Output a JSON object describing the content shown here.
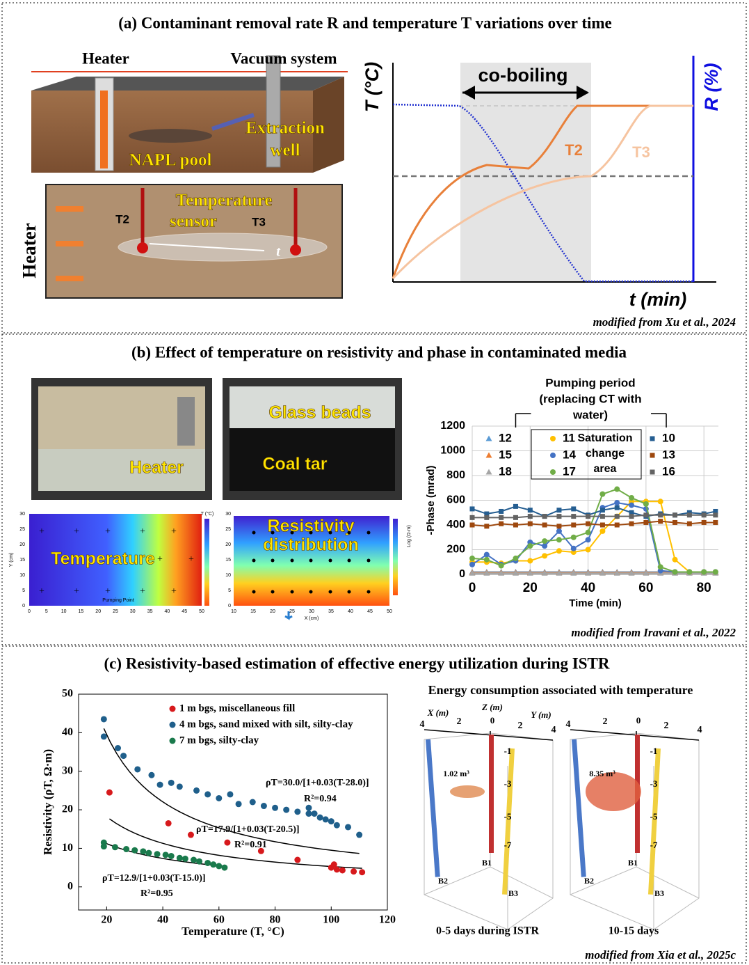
{
  "panels": [
    {
      "title": "(a) Contaminant removal rate R and temperature T variations over time",
      "credit": "modified from Xu et al., 2024",
      "schematic": {
        "heater": "Heater",
        "vacuum": "Vacuum system",
        "well": [
          "Extraction",
          "well"
        ],
        "pool": "NAPL pool",
        "sensor": [
          "Temperature",
          "sensor"
        ],
        "t2": "T2",
        "t3": "T3",
        "side_label": "Heater",
        "arrow_label": "t"
      },
      "concept_chart": {
        "y_label": "T (°C)",
        "y2_label": "R (%)",
        "band_label": "co-boiling",
        "t2": "T2",
        "t3": "T3",
        "x_label": "t (min)"
      }
    },
    {
      "title": "(b) Effect of temperature on resistivity and phase in contaminated media",
      "credit": "modified from Iravani et al., 2022",
      "photos": {
        "heater": "Heater",
        "beads": "Glass beads",
        "tar": "Coal tar"
      },
      "maps": {
        "temperature_label": "Temperature",
        "resistivity_label": [
          "Resistivity",
          "distribution"
        ],
        "y_ticks": [
          0,
          5,
          10,
          15,
          20,
          25,
          30
        ],
        "temp_x_ticks": [
          0,
          5,
          10,
          15,
          20,
          25,
          30,
          35,
          40,
          45,
          50
        ],
        "res_x_ticks": [
          10,
          15,
          20,
          25,
          30,
          35,
          40,
          45,
          50
        ],
        "y_axis": "Y (cm)",
        "x_axis": "X (cm)",
        "pumping_point": "Pumping Point",
        "temp_unit": "T (°C)",
        "res_unit": "Log (Ω·m)"
      }
    },
    {
      "title": "(c) Resistivity-based estimation of effective energy utilization during ISTR",
      "credit": "modified from Xia et al., 2025c",
      "model": {
        "title": "Energy consumption associated with temperature",
        "axis_labels": [
          "X (m)",
          "Z (m)",
          "Y (m)"
        ],
        "x_ticks": [
          4,
          2
        ],
        "z_ticks": [
          0,
          -1,
          -3,
          -5,
          -7
        ],
        "y_ticks": [
          2,
          4
        ],
        "wells": [
          "B1",
          "B2",
          "B3"
        ],
        "views": [
          {
            "volume": "1.02 m³",
            "caption": "0-5 days during ISTR"
          },
          {
            "volume": "8.35 m³",
            "caption": "10-15 days"
          }
        ]
      }
    }
  ],
  "chart_data": [
    {
      "type": "line",
      "y_label": "-Phase (mrad)",
      "x_label": "Time (min)",
      "annotation": [
        "Pumping period",
        "(replacing CT with",
        "water)"
      ],
      "legend_note": [
        "Saturation",
        "change",
        "area"
      ],
      "xlim": [
        0,
        85
      ],
      "xticks": [
        0,
        20,
        40,
        60,
        80
      ],
      "ylim": [
        0,
        1200
      ],
      "yticks": [
        0,
        200,
        400,
        600,
        800,
        1000,
        1200
      ],
      "grid": true,
      "x": [
        0,
        5,
        10,
        15,
        20,
        25,
        30,
        35,
        40,
        45,
        50,
        55,
        60,
        65,
        70,
        75,
        80,
        84
      ],
      "series": [
        {
          "name": "12",
          "color": "#5b9bd5",
          "marker": "triangle",
          "values": [
            20,
            20,
            20,
            20,
            20,
            20,
            20,
            20,
            20,
            20,
            20,
            20,
            20,
            20,
            20,
            20,
            20,
            20
          ]
        },
        {
          "name": "15",
          "color": "#ed7d31",
          "marker": "triangle",
          "values": [
            15,
            15,
            15,
            15,
            15,
            15,
            15,
            15,
            15,
            15,
            15,
            15,
            15,
            15,
            15,
            15,
            15,
            15
          ]
        },
        {
          "name": "18",
          "color": "#a5a5a5",
          "marker": "triangle",
          "values": [
            10,
            10,
            10,
            10,
            10,
            10,
            10,
            10,
            10,
            10,
            10,
            10,
            10,
            10,
            10,
            10,
            10,
            10
          ]
        },
        {
          "name": "11",
          "color": "#ffc000",
          "marker": "circle",
          "values": [
            100,
            100,
            90,
            110,
            110,
            150,
            190,
            180,
            200,
            350,
            470,
            590,
            590,
            590,
            120,
            20,
            20,
            20
          ]
        },
        {
          "name": "14",
          "color": "#4472c4",
          "marker": "circle",
          "values": [
            80,
            160,
            80,
            110,
            260,
            230,
            350,
            210,
            280,
            540,
            580,
            560,
            530,
            30,
            20,
            20,
            20,
            20
          ]
        },
        {
          "name": "17",
          "color": "#70ad47",
          "marker": "circle",
          "values": [
            130,
            120,
            70,
            130,
            230,
            270,
            280,
            300,
            340,
            650,
            690,
            620,
            570,
            60,
            20,
            20,
            20,
            20
          ]
        },
        {
          "name": "10",
          "color": "#255e91",
          "marker": "square",
          "values": [
            530,
            490,
            510,
            550,
            520,
            470,
            520,
            530,
            480,
            520,
            540,
            500,
            470,
            490,
            480,
            500,
            490,
            510
          ]
        },
        {
          "name": "13",
          "color": "#9e480e",
          "marker": "square",
          "values": [
            400,
            390,
            410,
            400,
            410,
            400,
            390,
            400,
            410,
            400,
            400,
            410,
            420,
            430,
            420,
            410,
            420,
            420
          ]
        },
        {
          "name": "16",
          "color": "#636363",
          "marker": "square",
          "values": [
            460,
            460,
            460,
            460,
            470,
            470,
            470,
            470,
            470,
            470,
            470,
            470,
            480,
            480,
            480,
            480,
            480,
            480
          ]
        }
      ]
    },
    {
      "type": "scatter",
      "y_label": "Resistivity (ρT, Ω·m)",
      "x_label": "Temperature (T, °C)",
      "xlim": [
        10,
        120
      ],
      "xticks": [
        20,
        40,
        60,
        80,
        100,
        120
      ],
      "ylim": [
        -6,
        50
      ],
      "yticks": [
        0,
        10,
        20,
        30,
        40,
        50
      ],
      "series": [
        {
          "name": "1 m bgs, miscellaneous fill",
          "color": "#d7191c",
          "x": [
            21,
            42,
            50,
            63,
            75,
            88,
            100,
            101,
            102,
            104,
            108,
            111
          ],
          "values": [
            24.5,
            16.5,
            13.5,
            11.5,
            9.3,
            7,
            5,
            5.8,
            4.5,
            4.3,
            4,
            3.8
          ],
          "fit": {
            "a": 17.9,
            "b": 0.03,
            "t0": 20.5
          },
          "equation": "ρT=17.9/[1+0.03(T-20.5)]",
          "r2": "R²=0.91"
        },
        {
          "name": "4 m bgs, sand mixed with silt, silty-clay",
          "color": "#1f5f8b",
          "x": [
            19,
            19,
            24,
            26,
            31,
            36,
            39,
            43,
            46,
            52,
            56,
            60,
            64,
            67,
            72,
            76,
            80,
            84,
            88,
            92,
            92,
            94,
            96,
            98,
            100,
            102,
            106,
            110
          ],
          "values": [
            43.5,
            39,
            36,
            34,
            30.5,
            29,
            26.5,
            27,
            26,
            25,
            24,
            23,
            24,
            21.5,
            22,
            21,
            20.5,
            20,
            19.5,
            19,
            20.5,
            19,
            18,
            17.5,
            17,
            16,
            15.5,
            13.5
          ],
          "fit": {
            "a": 30.0,
            "b": 0.03,
            "t0": 28.0
          },
          "equation": "ρT=30.0/[1+0.03(T-28.0)]",
          "r2": "R²=0.94"
        },
        {
          "name": "7 m bgs, silty-clay",
          "color": "#1a7a4c",
          "x": [
            19,
            19,
            23,
            27,
            30,
            33,
            35,
            38,
            41,
            43,
            46,
            48,
            51,
            53,
            56,
            58,
            60,
            62
          ],
          "values": [
            11.5,
            10.5,
            10.3,
            9.8,
            9.5,
            9.2,
            8.8,
            8.5,
            8.3,
            8,
            7.5,
            7.3,
            7,
            6.6,
            6.2,
            5.8,
            5.4,
            5
          ],
          "fit": {
            "a": 12.9,
            "b": 0.03,
            "t0": 15.0
          },
          "equation": "ρT=12.9/[1+0.03(T-15.0)]",
          "r2": "R²=0.95"
        }
      ]
    }
  ]
}
